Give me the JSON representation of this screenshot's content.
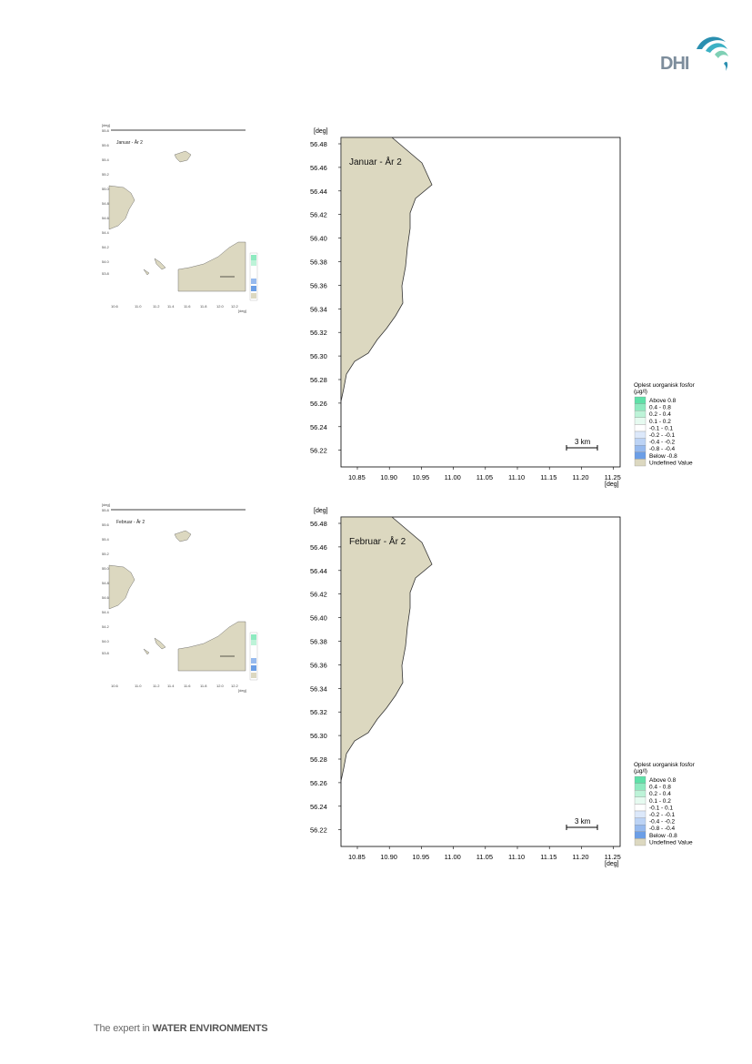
{
  "brand": {
    "logo_text": "DHI",
    "tagline_prefix": "The expert in",
    "tagline_emphasis": "WATER ENVIRONMENTS",
    "colors": {
      "wave_dark": "#2a8fb0",
      "wave_mid": "#3cb1c4",
      "wave_light": "#7fd0b5",
      "logo_gray": "#7d8d9c"
    }
  },
  "figures": [
    {
      "title": "Januar - År 2",
      "unit_label": "[deg]",
      "x_ticks": [
        "10.85",
        "10.90",
        "10.95",
        "11.00",
        "11.05",
        "11.10",
        "11.15",
        "11.20",
        "11.25"
      ],
      "y_ticks": [
        "56.48",
        "56.46",
        "56.44",
        "56.42",
        "56.40",
        "56.38",
        "56.36",
        "56.34",
        "56.32",
        "56.30",
        "56.28",
        "56.26",
        "56.24",
        "56.22"
      ],
      "scalebar": "3 km"
    },
    {
      "title": "Februar - År 2",
      "unit_label": "[deg]",
      "x_ticks": [
        "10.85",
        "10.90",
        "10.95",
        "11.00",
        "11.05",
        "11.10",
        "11.15",
        "11.20",
        "11.25"
      ],
      "y_ticks": [
        "56.48",
        "56.46",
        "56.44",
        "56.42",
        "56.40",
        "56.38",
        "56.36",
        "56.34",
        "56.32",
        "56.30",
        "56.28",
        "56.26",
        "56.24",
        "56.22"
      ],
      "scalebar": "3 km"
    }
  ],
  "legend": {
    "title": "Oplest uorganisk fosfor",
    "unit": "(µg/l)",
    "items": [
      {
        "label": "Above  0.8",
        "color": "#5fe0a8"
      },
      {
        "label": "0.4 -  0.8",
        "color": "#8eeac0"
      },
      {
        "label": "0.2 -  0.4",
        "color": "#bdf3d8"
      },
      {
        "label": "0.1 -  0.2",
        "color": "#e6faf0"
      },
      {
        "label": "-0.1 -  0.1",
        "color": "#ffffff"
      },
      {
        "label": "-0.2 - -0.1",
        "color": "#dce8fa"
      },
      {
        "label": "-0.4 - -0.2",
        "color": "#bcd3f5"
      },
      {
        "label": "-0.8 - -0.4",
        "color": "#97baee"
      },
      {
        "label": "Below -0.8",
        "color": "#6b9ee6"
      },
      {
        "label": "Undefined Value",
        "color": "#dcd8c0"
      }
    ]
  },
  "land_color": "#dcd8c0"
}
